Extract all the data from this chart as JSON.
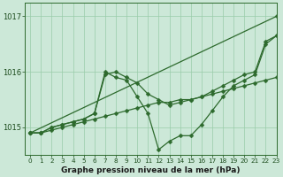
{
  "lines": [
    {
      "x": [
        0,
        23
      ],
      "y": [
        1014.9,
        1017.0
      ],
      "marker_x": []
    },
    {
      "x": [
        0,
        1,
        2,
        3,
        4,
        5,
        6,
        7,
        8,
        9,
        10,
        11,
        12,
        13,
        14,
        15,
        16,
        17,
        18,
        19,
        20,
        21,
        22,
        23
      ],
      "y": [
        1014.9,
        1014.9,
        1015.0,
        1015.05,
        1015.1,
        1015.15,
        1015.25,
        1016.0,
        1015.9,
        1015.85,
        1015.55,
        1015.25,
        1014.6,
        1014.75,
        1014.85,
        1014.85,
        1015.05,
        1015.3,
        1015.55,
        1015.75,
        1015.85,
        1015.95,
        1016.5,
        1016.65
      ],
      "marker_x": [
        0,
        1,
        2,
        3,
        4,
        5,
        6,
        7,
        8,
        9,
        10,
        11,
        12,
        13,
        14,
        15,
        16,
        17,
        18,
        19,
        20,
        21,
        22,
        23
      ]
    },
    {
      "x": [
        0,
        1,
        2,
        3,
        4,
        5,
        6,
        7,
        8,
        9,
        10,
        11,
        12,
        13,
        14,
        15,
        16,
        17,
        18,
        19,
        20,
        21,
        22,
        23
      ],
      "y": [
        1014.9,
        1014.9,
        1015.0,
        1015.05,
        1015.1,
        1015.15,
        1015.25,
        1015.95,
        1016.0,
        1015.9,
        1015.8,
        1015.6,
        1015.5,
        1015.4,
        1015.45,
        1015.5,
        1015.55,
        1015.65,
        1015.75,
        1015.85,
        1015.95,
        1016.0,
        1016.55,
        1016.65
      ],
      "marker_x": [
        0,
        1,
        2,
        3,
        4,
        5,
        6,
        7,
        8,
        9,
        10,
        11,
        12,
        13,
        14,
        15,
        16,
        17,
        18,
        19,
        20,
        21,
        22,
        23
      ]
    },
    {
      "x": [
        0,
        1,
        2,
        3,
        4,
        5,
        6,
        7,
        8,
        9,
        10,
        11,
        12,
        13,
        14,
        15,
        16,
        17,
        18,
        19,
        20,
        21,
        22,
        23
      ],
      "y": [
        1014.9,
        1014.9,
        1014.95,
        1015.0,
        1015.05,
        1015.1,
        1015.15,
        1015.2,
        1015.25,
        1015.3,
        1015.35,
        1015.4,
        1015.45,
        1015.45,
        1015.5,
        1015.5,
        1015.55,
        1015.6,
        1015.65,
        1015.7,
        1015.75,
        1015.8,
        1015.85,
        1015.9
      ],
      "marker_x": [
        0,
        1,
        2,
        3,
        4,
        5,
        6,
        7,
        8,
        9,
        10,
        11,
        12,
        13,
        14,
        15,
        16,
        17,
        18,
        19,
        20,
        21,
        22,
        23
      ]
    }
  ],
  "xlim": [
    -0.5,
    23
  ],
  "ylim": [
    1014.5,
    1017.25
  ],
  "yticks": [
    1015,
    1016,
    1017
  ],
  "xticks": [
    0,
    1,
    2,
    3,
    4,
    5,
    6,
    7,
    8,
    9,
    10,
    11,
    12,
    13,
    14,
    15,
    16,
    17,
    18,
    19,
    20,
    21,
    22,
    23
  ],
  "bg_color": "#cce8d8",
  "grid_color": "#99ccaa",
  "line_color": "#2d6a2d",
  "xlabel": "Graphe pression niveau de la mer (hPa)",
  "marker_size": 2.5
}
